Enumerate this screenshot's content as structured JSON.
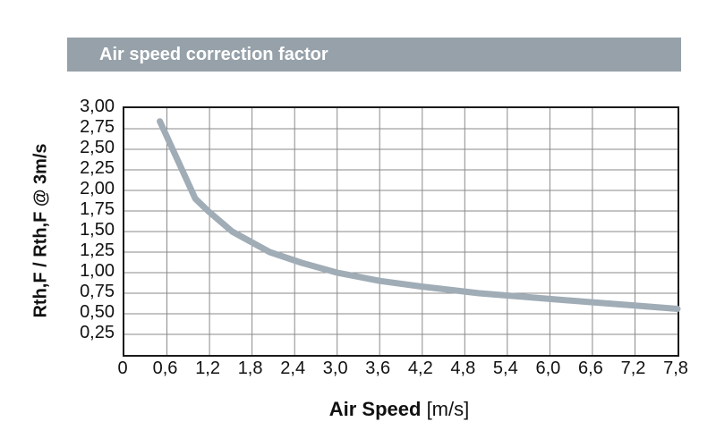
{
  "header": {
    "title": "Air speed correction factor"
  },
  "colors": {
    "header_bg": "#96A1A9",
    "header_text": "#FFFFFF",
    "curve": "#A0ACB6",
    "gridline": "#8A8A8A",
    "plot_border": "#1A1A1A",
    "text": "#111111",
    "background": "#FFFFFF"
  },
  "chart_data": {
    "type": "line",
    "title": "Air speed correction factor",
    "xlabel": "Air Speed [m/s]",
    "xlabel_bold": "Air Speed",
    "xlabel_unit": " [m/s]",
    "ylabel": "Rth,F / Rth,F @ 3m/s",
    "xlim": [
      0,
      7.8
    ],
    "ylim": [
      0,
      3.0
    ],
    "grid": true,
    "legend_position": "none",
    "decimal_separator": ",",
    "x_ticks": [
      0,
      0.6,
      1.2,
      1.8,
      2.4,
      3.0,
      3.6,
      4.2,
      4.8,
      5.4,
      6.0,
      6.6,
      7.2,
      7.8
    ],
    "x_tick_labels": [
      "0",
      "0,6",
      "1,2",
      "1,8",
      "2,4",
      "3,0",
      "3,6",
      "4,2",
      "4,8",
      "5,4",
      "6,0",
      "6,6",
      "7,2",
      "7,8"
    ],
    "y_ticks": [
      0.25,
      0.5,
      0.75,
      1.0,
      1.25,
      1.5,
      1.75,
      2.0,
      2.25,
      2.5,
      2.75,
      3.0
    ],
    "y_tick_labels": [
      "0,25",
      "0,50",
      "0,75",
      "1,00",
      "1,25",
      "1,50",
      "1,75",
      "2,00",
      "2,25",
      "2,50",
      "2,75",
      "3,00"
    ],
    "series": [
      {
        "name": "Rth,F / Rth,F @ 3m/s correction factor",
        "points": [
          [
            0.5,
            2.84
          ],
          [
            1.0,
            1.9
          ],
          [
            1.18,
            1.75
          ],
          [
            1.52,
            1.5
          ],
          [
            2.05,
            1.25
          ],
          [
            2.5,
            1.12
          ],
          [
            3.0,
            1.0
          ],
          [
            3.6,
            0.9
          ],
          [
            4.2,
            0.83
          ],
          [
            5.0,
            0.75
          ],
          [
            6.0,
            0.68
          ],
          [
            6.6,
            0.64
          ],
          [
            7.2,
            0.6
          ],
          [
            7.8,
            0.56
          ]
        ]
      }
    ]
  }
}
